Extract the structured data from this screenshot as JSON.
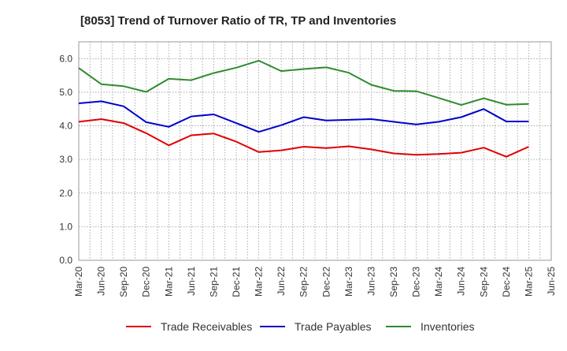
{
  "chart_data": {
    "type": "line",
    "title": "[8053]  Trend of Turnover Ratio of TR, TP and Inventories",
    "xlabel": "",
    "ylabel": "",
    "ylim": [
      0,
      6.5
    ],
    "y_ticks": [
      "0.0",
      "1.0",
      "2.0",
      "3.0",
      "4.0",
      "5.0",
      "6.0"
    ],
    "y_tick_values": [
      0,
      1,
      2,
      3,
      4,
      5,
      6
    ],
    "x": [
      "Mar-20",
      "Jun-20",
      "Sep-20",
      "Dec-20",
      "Mar-21",
      "Jun-21",
      "Sep-21",
      "Dec-21",
      "Mar-22",
      "Jun-22",
      "Sep-22",
      "Dec-22",
      "Mar-23",
      "Jun-23",
      "Sep-23",
      "Dec-23",
      "Mar-24",
      "Jun-24",
      "Sep-24",
      "Dec-24",
      "Mar-25",
      "Jun-25"
    ],
    "grid": true,
    "legend_position": "bottom",
    "series": [
      {
        "name": "Trade Receivables",
        "color": "#e00000",
        "values": [
          4.12,
          4.2,
          4.08,
          3.78,
          3.42,
          3.72,
          3.77,
          3.53,
          3.22,
          3.27,
          3.38,
          3.34,
          3.39,
          3.3,
          3.18,
          3.14,
          3.16,
          3.2,
          3.35,
          3.08,
          3.38,
          null
        ]
      },
      {
        "name": "Trade Payables",
        "color": "#0000cc",
        "values": [
          4.67,
          4.73,
          4.58,
          4.11,
          3.97,
          4.28,
          4.34,
          4.08,
          3.82,
          4.02,
          4.26,
          4.16,
          4.18,
          4.2,
          4.12,
          4.04,
          4.12,
          4.26,
          4.5,
          4.13,
          4.13,
          null
        ]
      },
      {
        "name": "Inventories",
        "color": "#2e8b2e",
        "values": [
          5.72,
          5.24,
          5.18,
          5.01,
          5.4,
          5.36,
          5.57,
          5.73,
          5.94,
          5.63,
          5.69,
          5.74,
          5.58,
          5.22,
          5.04,
          5.03,
          4.83,
          4.62,
          4.82,
          4.63,
          4.65,
          null
        ]
      }
    ]
  }
}
